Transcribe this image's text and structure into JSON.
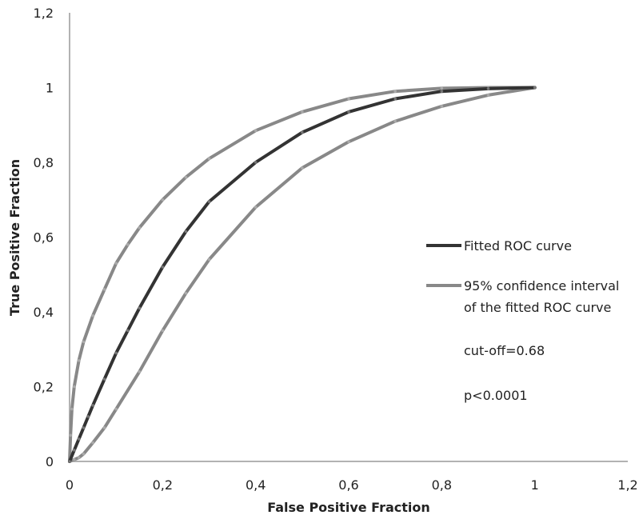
{
  "chart_data": {
    "type": "line",
    "xlabel": "False Positive Fraction",
    "ylabel": "True Positive Fraction",
    "xlim": [
      0,
      1.2
    ],
    "ylim": [
      0,
      1.2
    ],
    "xticks": [
      0,
      0.2,
      0.4,
      0.6,
      0.8,
      1,
      1.2
    ],
    "yticks": [
      0,
      0.2,
      0.4,
      0.6,
      0.8,
      1,
      1.2
    ],
    "xtick_labels": [
      "0",
      "0,2",
      "0,4",
      "0,6",
      "0,8",
      "1",
      "1,2"
    ],
    "ytick_labels": [
      "0",
      "0,2",
      "0,4",
      "0,6",
      "0,8",
      "1",
      "1,2"
    ],
    "grid": false,
    "legend_position": "right",
    "series": [
      {
        "name": "Fitted ROC curve",
        "color": "#333333",
        "points": [
          [
            0,
            0
          ],
          [
            0.01,
            0.03
          ],
          [
            0.02,
            0.06
          ],
          [
            0.03,
            0.09
          ],
          [
            0.04,
            0.12
          ],
          [
            0.05,
            0.15
          ],
          [
            0.075,
            0.22
          ],
          [
            0.1,
            0.29
          ],
          [
            0.125,
            0.35
          ],
          [
            0.15,
            0.41
          ],
          [
            0.2,
            0.52
          ],
          [
            0.25,
            0.615
          ],
          [
            0.3,
            0.695
          ],
          [
            0.4,
            0.8
          ],
          [
            0.5,
            0.88
          ],
          [
            0.6,
            0.935
          ],
          [
            0.7,
            0.97
          ],
          [
            0.8,
            0.99
          ],
          [
            0.9,
            0.997
          ],
          [
            1,
            1
          ]
        ]
      },
      {
        "name": "95% confidence interval of the fitted ROC curve",
        "color": "#888888",
        "points": [
          [
            0,
            0
          ],
          [
            0.002,
            0.07
          ],
          [
            0.005,
            0.14
          ],
          [
            0.01,
            0.2
          ],
          [
            0.02,
            0.27
          ],
          [
            0.03,
            0.32
          ],
          [
            0.05,
            0.39
          ],
          [
            0.075,
            0.46
          ],
          [
            0.1,
            0.53
          ],
          [
            0.125,
            0.58
          ],
          [
            0.15,
            0.625
          ],
          [
            0.2,
            0.7
          ],
          [
            0.25,
            0.76
          ],
          [
            0.3,
            0.81
          ],
          [
            0.4,
            0.885
          ],
          [
            0.5,
            0.935
          ],
          [
            0.6,
            0.97
          ],
          [
            0.7,
            0.99
          ],
          [
            0.8,
            0.998
          ],
          [
            0.9,
            1
          ],
          [
            1,
            1
          ]
        ]
      },
      {
        "name": "",
        "color": "#888888",
        "points": [
          [
            0,
            0
          ],
          [
            0.01,
            0.005
          ],
          [
            0.02,
            0.01
          ],
          [
            0.03,
            0.02
          ],
          [
            0.05,
            0.05
          ],
          [
            0.075,
            0.09
          ],
          [
            0.1,
            0.14
          ],
          [
            0.15,
            0.24
          ],
          [
            0.2,
            0.35
          ],
          [
            0.25,
            0.45
          ],
          [
            0.3,
            0.54
          ],
          [
            0.4,
            0.68
          ],
          [
            0.5,
            0.785
          ],
          [
            0.6,
            0.855
          ],
          [
            0.7,
            0.91
          ],
          [
            0.8,
            0.95
          ],
          [
            0.9,
            0.98
          ],
          [
            1,
            1
          ]
        ]
      }
    ],
    "legend": [
      {
        "label": "Fitted ROC curve",
        "color": "#333333"
      },
      {
        "label_line1": "95% confidence interval",
        "label_line2": "of the fitted ROC curve",
        "color": "#888888"
      }
    ],
    "annotations": [
      "cut-off=0.68",
      "p<0.0001"
    ]
  }
}
